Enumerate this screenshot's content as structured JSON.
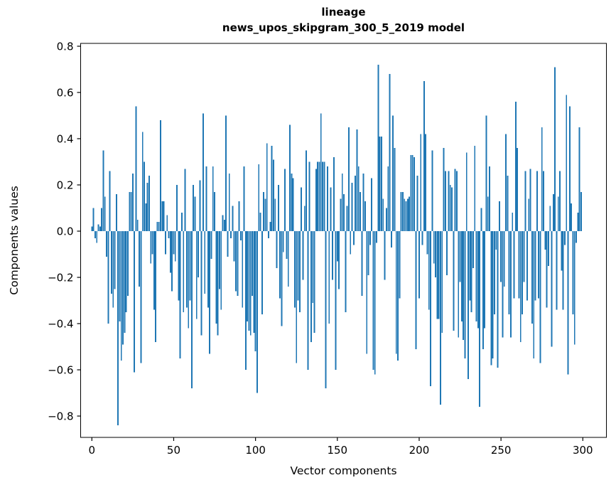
{
  "title": {
    "line1": "lineage",
    "line2": "news_upos_skipgram_300_5_2019 model"
  },
  "axes": {
    "xlabel": "Vector components",
    "ylabel": "Components values",
    "xticks": [
      {
        "label": "0",
        "v": 0
      },
      {
        "label": "50",
        "v": 50
      },
      {
        "label": "100",
        "v": 100
      },
      {
        "label": "150",
        "v": 150
      },
      {
        "label": "200",
        "v": 200
      },
      {
        "label": "250",
        "v": 250
      },
      {
        "label": "300",
        "v": 300
      }
    ],
    "yticks": [
      {
        "label": "0.8",
        "v": 0.8
      },
      {
        "label": "0.6",
        "v": 0.6
      },
      {
        "label": "0.4",
        "v": 0.4
      },
      {
        "label": "0.2",
        "v": 0.2
      },
      {
        "label": "0.0",
        "v": 0.0
      },
      {
        "label": "−0.2",
        "v": -0.2
      },
      {
        "label": "−0.4",
        "v": -0.4
      },
      {
        "label": "−0.6",
        "v": -0.6
      },
      {
        "label": "−0.8",
        "v": -0.8
      }
    ]
  },
  "chart_data": {
    "type": "bar",
    "title": "lineage — news_upos_skipgram_300_5_2019 model",
    "xlabel": "Vector components",
    "ylabel": "Components values",
    "bar_color": "#1f77b4",
    "n_components": 300,
    "xlim": [
      -15.4,
      314.4
    ],
    "ylim": [
      -0.892,
      0.812
    ],
    "grid": false,
    "values": [
      0.02,
      0.1,
      -0.03,
      -0.05,
      0.03,
      0.02,
      0.1,
      0.35,
      0.15,
      -0.11,
      -0.4,
      0.26,
      -0.27,
      -0.33,
      -0.25,
      0.16,
      -0.84,
      -0.39,
      -0.56,
      -0.49,
      -0.44,
      -0.35,
      -0.28,
      0.17,
      0.17,
      0.25,
      -0.61,
      0.54,
      0.05,
      -0.24,
      -0.57,
      0.43,
      0.3,
      0.12,
      0.21,
      0.24,
      -0.14,
      -0.1,
      -0.34,
      -0.48,
      0.04,
      0.04,
      0.48,
      0.13,
      0.13,
      -0.1,
      0.07,
      -0.03,
      -0.18,
      -0.26,
      -0.1,
      -0.13,
      0.2,
      -0.3,
      -0.55,
      0.08,
      -0.35,
      0.27,
      -0.33,
      -0.42,
      -0.3,
      -0.68,
      0.2,
      0.15,
      -0.38,
      -0.2,
      0.22,
      -0.45,
      0.51,
      -0.27,
      0.28,
      -0.33,
      -0.53,
      -0.12,
      0.28,
      0.17,
      -0.4,
      -0.45,
      -0.25,
      -0.34,
      0.07,
      0.05,
      0.5,
      -0.11,
      0.25,
      -0.03,
      0.11,
      -0.13,
      -0.26,
      -0.28,
      0.13,
      -0.04,
      -0.33,
      0.28,
      -0.6,
      -0.39,
      -0.43,
      -0.45,
      -0.28,
      -0.44,
      -0.52,
      -0.7,
      0.29,
      0.08,
      -0.36,
      0.17,
      0.14,
      0.38,
      -0.03,
      0.04,
      0.37,
      0.31,
      0.14,
      -0.16,
      0.2,
      -0.29,
      -0.41,
      -0.09,
      0.27,
      -0.12,
      -0.24,
      0.46,
      0.25,
      0.23,
      -0.33,
      -0.57,
      -0.3,
      -0.35,
      0.19,
      -0.21,
      0.11,
      0.35,
      -0.6,
      0.3,
      -0.48,
      -0.31,
      -0.44,
      0.27,
      0.3,
      0.3,
      0.51,
      0.3,
      0.3,
      -0.68,
      0.28,
      -0.4,
      0.19,
      -0.21,
      0.32,
      -0.6,
      -0.13,
      -0.25,
      0.14,
      0.25,
      0.16,
      -0.35,
      0.11,
      0.45,
      -0.1,
      0.21,
      -0.06,
      0.24,
      0.44,
      0.28,
      0.17,
      -0.28,
      0.25,
      0.13,
      -0.53,
      -0.19,
      -0.06,
      0.23,
      -0.6,
      -0.62,
      -0.05,
      0.72,
      0.41,
      0.41,
      0.14,
      -0.21,
      0.1,
      0.28,
      0.68,
      -0.07,
      0.5,
      0.36,
      -0.53,
      -0.56,
      -0.29,
      0.17,
      0.17,
      0.14,
      0.13,
      0.14,
      0.15,
      0.33,
      0.33,
      0.32,
      -0.51,
      0.24,
      -0.29,
      0.42,
      -0.06,
      0.65,
      0.42,
      -0.1,
      -0.34,
      -0.67,
      0.35,
      -0.14,
      -0.2,
      -0.38,
      -0.38,
      -0.75,
      -0.44,
      0.36,
      0.26,
      -0.19,
      0.26,
      0.2,
      0.19,
      -0.43,
      0.27,
      0.26,
      -0.46,
      -0.22,
      -0.39,
      -0.47,
      -0.55,
      0.34,
      -0.64,
      -0.3,
      -0.35,
      -0.16,
      0.37,
      -0.39,
      -0.42,
      -0.76,
      0.1,
      -0.51,
      -0.42,
      0.5,
      0.15,
      0.28,
      -0.58,
      -0.55,
      -0.36,
      -0.08,
      -0.59,
      0.13,
      -0.22,
      -0.46,
      -0.24,
      0.42,
      0.24,
      -0.36,
      -0.46,
      0.08,
      -0.29,
      0.56,
      0.36,
      -0.29,
      -0.48,
      -0.36,
      -0.22,
      0.26,
      -0.3,
      0.14,
      0.27,
      -0.4,
      -0.55,
      -0.3,
      0.26,
      -0.29,
      -0.57,
      0.45,
      0.26,
      -0.08,
      -0.33,
      -0.15,
      0.11,
      -0.5,
      0.16,
      0.71,
      -0.34,
      0.15,
      0.26,
      -0.17,
      -0.34,
      -0.06,
      0.59,
      -0.62,
      0.54,
      0.12,
      -0.36,
      -0.49,
      -0.05,
      0.08,
      0.45,
      0.17
    ]
  }
}
